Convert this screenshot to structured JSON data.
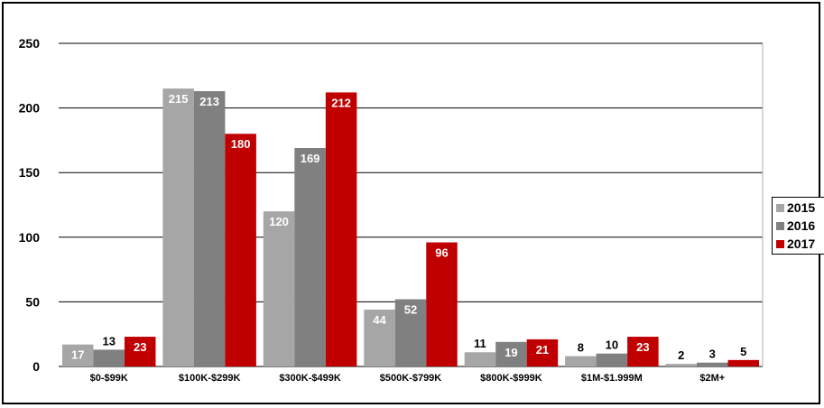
{
  "chart_data": {
    "type": "bar",
    "categories": [
      "$0-$99K",
      "$100K-$299K",
      "$300K-$499K",
      "$500K-$799K",
      "$800K-$999K",
      "$1M-$1.999M",
      "$2M+"
    ],
    "series": [
      {
        "name": "2015",
        "color": "#a6a6a6",
        "values": [
          17,
          215,
          120,
          44,
          11,
          8,
          2
        ]
      },
      {
        "name": "2016",
        "color": "#808080",
        "values": [
          13,
          213,
          169,
          52,
          19,
          10,
          3
        ]
      },
      {
        "name": "2017",
        "color": "#c00000",
        "values": [
          23,
          180,
          212,
          96,
          21,
          23,
          5
        ]
      }
    ],
    "ylim": [
      0,
      250
    ],
    "yticks": [
      0,
      50,
      100,
      150,
      200,
      250
    ],
    "grid": true,
    "legend_position": "right"
  }
}
